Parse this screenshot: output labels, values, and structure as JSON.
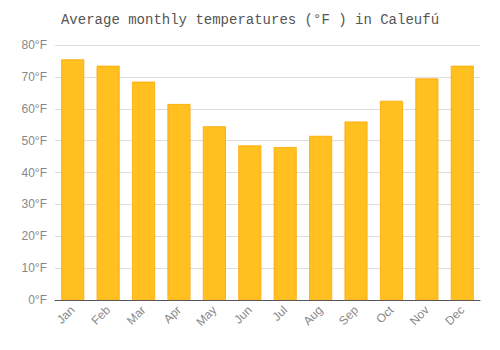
{
  "chart_data": {
    "type": "bar",
    "title": "Average monthly temperatures (°F ) in Caleufú",
    "categories": [
      "Jan",
      "Feb",
      "Mar",
      "Apr",
      "May",
      "Jun",
      "Jul",
      "Aug",
      "Sep",
      "Oct",
      "Nov",
      "Dec"
    ],
    "values": [
      75.5,
      73.5,
      68.5,
      61.5,
      54.5,
      48.5,
      48.0,
      51.5,
      56.0,
      62.5,
      69.5,
      73.5
    ],
    "color": "#FFC020",
    "ylim": [
      0,
      80
    ],
    "yticks": [
      {
        "value": 0,
        "label": "0°F"
      },
      {
        "value": 10,
        "label": "10°F"
      },
      {
        "value": 20,
        "label": "20°F"
      },
      {
        "value": 30,
        "label": "30°F"
      },
      {
        "value": 40,
        "label": "40°F"
      },
      {
        "value": 50,
        "label": "50°F"
      },
      {
        "value": 60,
        "label": "60°F"
      },
      {
        "value": 70,
        "label": "70°F"
      },
      {
        "value": 80,
        "label": "80°F"
      }
    ],
    "grid": true
  }
}
